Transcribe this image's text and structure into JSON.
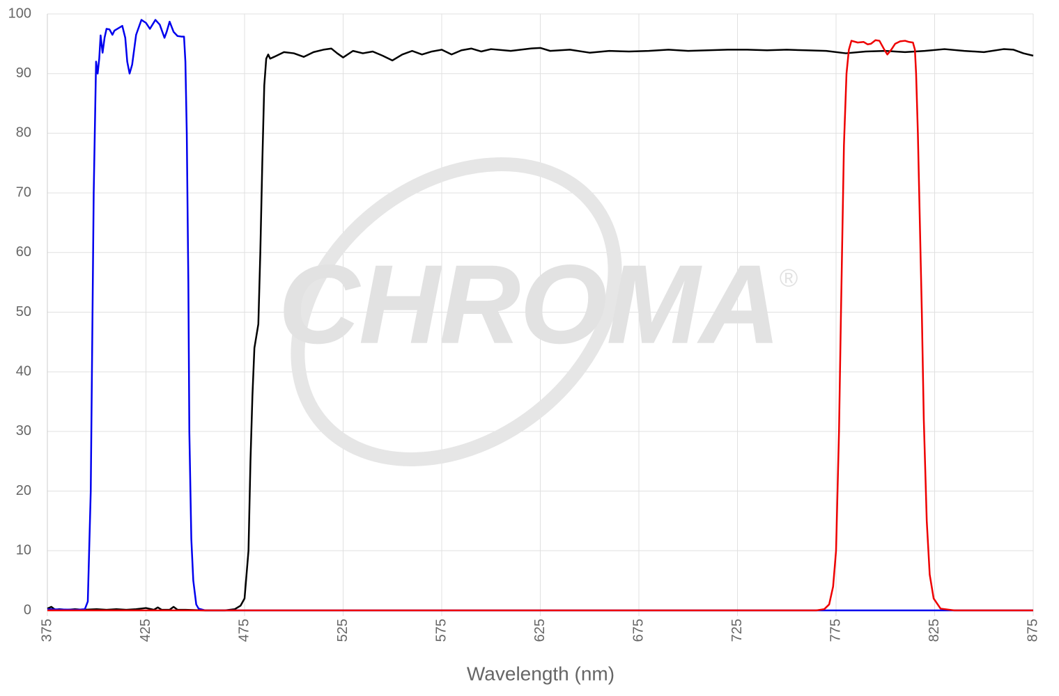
{
  "chart_data": {
    "type": "line",
    "x_label": "Wavelength (nm)",
    "watermark": "CHROMA",
    "watermark_mark": "®",
    "xlim": [
      375,
      875
    ],
    "xticks": [
      375,
      425,
      475,
      525,
      575,
      625,
      675,
      725,
      775,
      825,
      875
    ],
    "ylim": [
      0,
      100
    ],
    "yticks": [
      0,
      10,
      20,
      30,
      40,
      50,
      60,
      70,
      80,
      90,
      100
    ],
    "grid": true,
    "series": [
      {
        "color": "#000000",
        "x": [
          375,
          377,
          379,
          381,
          385,
          389,
          393,
          400,
          405,
          410,
          415,
          420,
          425,
          429,
          431,
          433,
          437,
          439,
          441,
          445,
          455,
          465,
          470,
          473,
          475,
          477,
          478,
          479,
          480,
          481,
          482,
          483,
          484,
          485,
          486,
          487,
          488,
          490,
          495,
          500,
          505,
          510,
          515,
          519,
          522,
          525,
          530,
          535,
          540,
          545,
          550,
          555,
          560,
          565,
          570,
          575,
          580,
          585,
          590,
          595,
          600,
          610,
          620,
          625,
          630,
          640,
          650,
          660,
          670,
          680,
          690,
          700,
          710,
          720,
          730,
          740,
          750,
          760,
          770,
          780,
          790,
          800,
          810,
          820,
          830,
          840,
          850,
          860,
          865,
          870,
          875
        ],
        "values": [
          0.3,
          0.6,
          0.1,
          0.2,
          0.1,
          0.2,
          0.1,
          0.2,
          0.1,
          0.2,
          0.1,
          0.2,
          0.4,
          0.1,
          0.5,
          0.1,
          0.1,
          0.6,
          0.1,
          0.1,
          0,
          0,
          0.2,
          0.8,
          2,
          10,
          25,
          36,
          44,
          46,
          48,
          60,
          75,
          88,
          92.5,
          93.2,
          92.5,
          92.8,
          93.6,
          93.4,
          92.8,
          93.6,
          94,
          94.2,
          93.4,
          92.7,
          93.8,
          93.4,
          93.7,
          93,
          92.2,
          93.2,
          93.8,
          93.2,
          93.7,
          94,
          93.2,
          93.9,
          94.2,
          93.7,
          94.1,
          93.8,
          94.2,
          94.3,
          93.8,
          94,
          93.5,
          93.8,
          93.7,
          93.8,
          94,
          93.8,
          93.9,
          94,
          94,
          93.9,
          94,
          93.9,
          93.8,
          93.4,
          93.7,
          93.8,
          93.6,
          93.8,
          94.1,
          93.8,
          93.6,
          94.1,
          94,
          93.4,
          93
        ]
      },
      {
        "color": "#0000ee",
        "x": [
          375,
          390,
          394,
          395.5,
          397,
          398.5,
          399.7,
          400.5,
          401.3,
          402,
          403,
          404,
          405,
          406.5,
          408,
          409,
          410.5,
          413,
          414.5,
          415.5,
          416.7,
          418,
          420,
          422.7,
          425,
          427,
          429.8,
          432,
          434.4,
          435.5,
          437,
          439,
          441,
          443,
          444.3,
          445,
          445.7,
          446.5,
          447,
          448,
          449,
          450.5,
          451.7,
          455,
          875
        ],
        "values": [
          0.2,
          0.1,
          0.2,
          1.5,
          20,
          70,
          92,
          90,
          92.5,
          96.4,
          93.5,
          96,
          97.5,
          97.4,
          96.5,
          97.2,
          97.5,
          98,
          96,
          92,
          90,
          91.5,
          96.5,
          99,
          98.5,
          97.5,
          99,
          98.2,
          96,
          97,
          98.7,
          97,
          96.3,
          96.2,
          96.2,
          92,
          80,
          55,
          30,
          12,
          5,
          1,
          0.3,
          0,
          0
        ]
      },
      {
        "color": "#ee0000",
        "x": [
          375,
          765,
          769,
          771.5,
          773.5,
          775,
          776.5,
          777.5,
          779,
          780.3,
          781.5,
          782.8,
          786,
          789,
          791,
          792.7,
          795,
          797,
          799.5,
          801,
          803,
          805,
          807.5,
          810,
          812,
          814,
          815,
          815.6,
          816.5,
          817.5,
          818.5,
          819.5,
          821,
          822.5,
          824.5,
          828,
          835,
          875
        ],
        "values": [
          0,
          0,
          0.2,
          1,
          4,
          10,
          30,
          50,
          78,
          90,
          94,
          95.5,
          95.2,
          95.3,
          94.9,
          95,
          95.6,
          95.5,
          94,
          93.2,
          94,
          95,
          95.4,
          95.5,
          95.3,
          95.2,
          94,
          90,
          80,
          65,
          50,
          32,
          15,
          6,
          2,
          0.3,
          0,
          0
        ]
      }
    ]
  }
}
